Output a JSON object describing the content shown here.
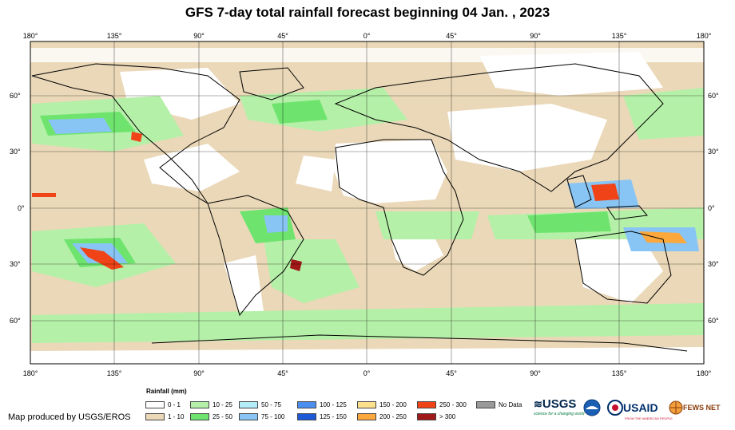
{
  "title": "GFS 7-day total rainfall forecast beginning 04 Jan. , 2023",
  "longitude_labels": [
    "180°",
    "135°",
    "90°",
    "45°",
    "0°",
    "45°",
    "90°",
    "135°",
    "180°"
  ],
  "latitude_labels": [
    "60°",
    "30°",
    "0°",
    "30°",
    "60°"
  ],
  "legend": {
    "title": "Rainfall (mm)",
    "items": [
      {
        "label": "0 - 1",
        "color": "#ffffff"
      },
      {
        "label": "1 - 10",
        "color": "#ead8b8"
      },
      {
        "label": "10 - 25",
        "color": "#b5f0a8"
      },
      {
        "label": "25 - 50",
        "color": "#6ee46e"
      },
      {
        "label": "50 - 75",
        "color": "#b4ecf8"
      },
      {
        "label": "75 - 100",
        "color": "#88c4f4"
      },
      {
        "label": "100 - 125",
        "color": "#4a8ef0"
      },
      {
        "label": "125 - 150",
        "color": "#1e5ad8"
      },
      {
        "label": "150 - 200",
        "color": "#fce08c"
      },
      {
        "label": "200 - 250",
        "color": "#fca83c"
      },
      {
        "label": "250 - 300",
        "color": "#f04418"
      },
      {
        "label": "> 300",
        "color": "#a01818"
      },
      {
        "label": "No Data",
        "color": "#999999"
      }
    ]
  },
  "credit": "Map produced by USGS/EROS",
  "logos": {
    "usgs": "USGS",
    "usgs_tagline": "science for a changing world",
    "noaa": "NOAA",
    "usaid": "USAID",
    "usaid_tagline": "FROM THE AMERICAN PEOPLE",
    "fewsnet": "FEWS NET"
  }
}
